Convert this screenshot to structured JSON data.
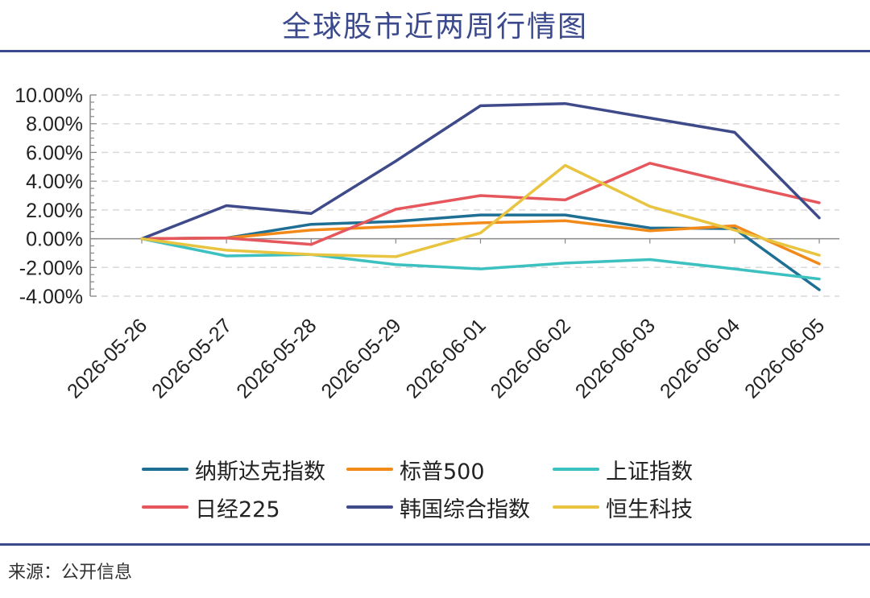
{
  "header": {
    "title": "全球股市近两周行情图"
  },
  "footer": {
    "source": "来源：公开信息"
  },
  "chart_data": {
    "type": "line",
    "title": "全球股市近两周行情图",
    "xlabel": "",
    "ylabel": "",
    "ylim": [
      -4,
      10
    ],
    "y_ticks": [
      10,
      8,
      6,
      4,
      2,
      0,
      -2,
      -4
    ],
    "y_tick_labels": [
      "10.00%",
      "8.00%",
      "6.00%",
      "4.00%",
      "2.00%",
      "0.00%",
      "-2.00%",
      "-4.00%"
    ],
    "grid": "horizontal dashed",
    "legend_position": "bottom",
    "categories": [
      "2026-05-26",
      "2026-05-27",
      "2026-05-28",
      "2026-05-29",
      "2026-06-01",
      "2026-06-02",
      "2026-06-03",
      "2026-06-04",
      "2026-06-05"
    ],
    "series": [
      {
        "name": "纳斯达克指数",
        "color": "#1f6e94",
        "values": [
          0,
          0.05,
          1.0,
          1.2,
          1.65,
          1.65,
          0.75,
          0.7,
          -3.55
        ]
      },
      {
        "name": "标普500",
        "color": "#f28a1a",
        "values": [
          0,
          0.05,
          0.6,
          0.85,
          1.1,
          1.25,
          0.55,
          0.9,
          -1.75
        ]
      },
      {
        "name": "上证指数",
        "color": "#3cc0c0",
        "values": [
          0,
          -1.2,
          -1.1,
          -1.8,
          -2.1,
          -1.7,
          -1.45,
          -2.1,
          -2.8
        ]
      },
      {
        "name": "日经225",
        "color": "#e5575c",
        "values": [
          0,
          0.05,
          -0.4,
          2.05,
          3.0,
          2.7,
          5.25,
          3.85,
          2.5
        ]
      },
      {
        "name": "韩国综合指数",
        "color": "#3f4a8a",
        "values": [
          0,
          2.3,
          1.75,
          5.4,
          9.25,
          9.4,
          8.4,
          7.4,
          1.45
        ]
      },
      {
        "name": "恒生科技",
        "color": "#e8c440",
        "values": [
          0,
          -0.8,
          -1.1,
          -1.25,
          0.4,
          5.1,
          2.25,
          0.6,
          -1.15
        ]
      }
    ]
  }
}
